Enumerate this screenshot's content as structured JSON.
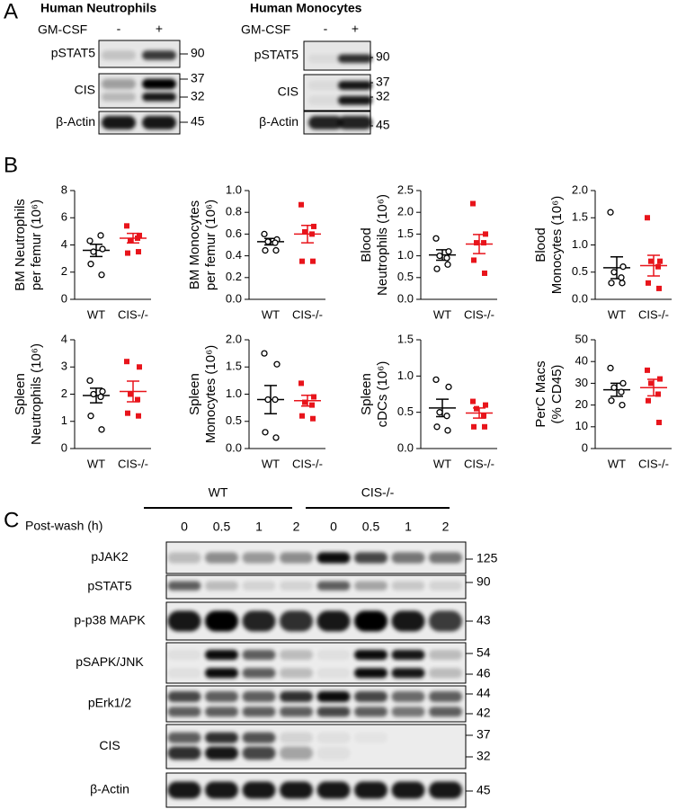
{
  "panels": [
    "A",
    "B",
    "C"
  ],
  "blot_a": [
    {
      "title": "Human Neutrophils",
      "treatment": "GM-CSF",
      "lanes": [
        "-",
        "+"
      ],
      "rows": [
        {
          "label": "pSTAT5",
          "mw": [
            "90"
          ]
        },
        {
          "label": "CIS",
          "mw": [
            "37",
            "32"
          ]
        },
        {
          "label": "β-Actin",
          "mw": [
            "45"
          ]
        }
      ]
    },
    {
      "title": "Human Monocytes",
      "treatment": "GM-CSF",
      "lanes": [
        "-",
        "+"
      ],
      "rows": [
        {
          "label": "pSTAT5",
          "mw": [
            "90"
          ]
        },
        {
          "label": "CIS",
          "mw": [
            "37",
            "32"
          ]
        },
        {
          "label": "β-Actin",
          "mw": [
            "45"
          ]
        }
      ]
    }
  ],
  "chart_data": [
    {
      "type": "dotplot",
      "ylabel": [
        "BM Neutrophils",
        "per femur (10⁶)"
      ],
      "ylim": [
        0,
        8
      ],
      "yticks": [
        0,
        2,
        4,
        6,
        8
      ],
      "series": [
        {
          "name": "WT",
          "color": "#000000",
          "values": [
            4.3,
            3.7,
            3.5,
            4.7,
            2.6,
            1.8
          ],
          "mean": 3.6,
          "sem": 0.45
        },
        {
          "name": "CIS-/-",
          "color": "#e8141b",
          "values": [
            5.4,
            4.7,
            4.3,
            4.5,
            3.4,
            3.5
          ],
          "mean": 4.5,
          "sem": 0.35
        }
      ]
    },
    {
      "type": "dotplot",
      "ylabel": [
        "BM Monocytes",
        "per femur (10⁶)"
      ],
      "ylim": [
        0,
        1.0
      ],
      "yticks": [
        {
          "value": 0,
          "label": "0.0"
        },
        {
          "value": 0.2,
          "label": "0.2"
        },
        {
          "value": 0.4,
          "label": "0.4"
        },
        {
          "value": 0.6,
          "label": "0.6"
        },
        {
          "value": 0.8,
          "label": "0.8"
        },
        {
          "value": 1.0,
          "label": "1.0"
        }
      ],
      "series": [
        {
          "name": "WT",
          "color": "#000000",
          "values": [
            0.6,
            0.55,
            0.53,
            0.52,
            0.45,
            0.45
          ],
          "mean": 0.53,
          "sem": 0.03
        },
        {
          "name": "CIS-/-",
          "color": "#e8141b",
          "values": [
            0.87,
            0.67,
            0.62,
            0.6,
            0.35,
            0.35
          ],
          "mean": 0.6,
          "sem": 0.08
        }
      ]
    },
    {
      "type": "dotplot",
      "ylabel": [
        "Blood",
        "Neutrophils (10⁶)"
      ],
      "ylim": [
        0,
        2.5
      ],
      "yticks": [
        {
          "value": 0,
          "label": "0.0"
        },
        0.5,
        {
          "value": 1,
          "label": "1.0"
        },
        1.5,
        {
          "value": 2,
          "label": "2.0"
        },
        2.5
      ],
      "series": [
        {
          "name": "WT",
          "color": "#000000",
          "values": [
            1.4,
            1.1,
            1.0,
            0.95,
            0.7,
            0.8
          ],
          "mean": 1.02,
          "sem": 0.12
        },
        {
          "name": "CIS-/-",
          "color": "#e8141b",
          "values": [
            2.2,
            1.5,
            1.3,
            1.3,
            0.9,
            0.6
          ],
          "mean": 1.27,
          "sem": 0.22
        }
      ]
    },
    {
      "type": "dotplot",
      "ylabel": [
        "Blood",
        "Monocytes (10⁶)"
      ],
      "ylim": [
        0,
        2.0
      ],
      "yticks": [
        {
          "value": 0,
          "label": "0.0"
        },
        0.5,
        {
          "value": 1,
          "label": "1.0"
        },
        1.5,
        {
          "value": 2,
          "label": "2.0"
        }
      ],
      "series": [
        {
          "name": "WT",
          "color": "#000000",
          "values": [
            1.6,
            0.6,
            0.5,
            0.4,
            0.3,
            0.3
          ],
          "mean": 0.58,
          "sem": 0.2
        },
        {
          "name": "CIS-/-",
          "color": "#e8141b",
          "values": [
            1.5,
            0.7,
            0.7,
            0.6,
            0.3,
            0.2
          ],
          "mean": 0.62,
          "sem": 0.19
        }
      ]
    },
    {
      "type": "dotplot",
      "ylabel": [
        "Spleen",
        "Neutrophils (10⁶)"
      ],
      "ylim": [
        0,
        4
      ],
      "yticks": [
        0,
        1,
        2,
        3,
        4
      ],
      "series": [
        {
          "name": "WT",
          "color": "#000000",
          "values": [
            2.5,
            2.1,
            2.0,
            1.9,
            1.2,
            0.7
          ],
          "mean": 1.95,
          "sem": 0.27
        },
        {
          "name": "CIS-/-",
          "color": "#e8141b",
          "values": [
            3.2,
            3.0,
            2.0,
            1.8,
            1.3,
            1.2
          ],
          "mean": 2.1,
          "sem": 0.38
        }
      ]
    },
    {
      "type": "dotplot",
      "ylabel": [
        "Spleen",
        "Monocytes (10⁶)"
      ],
      "ylim": [
        0,
        2.0
      ],
      "yticks": [
        {
          "value": 0,
          "label": "0.0"
        },
        0.5,
        {
          "value": 1,
          "label": "1.0"
        },
        1.5,
        {
          "value": 2,
          "label": "2.0"
        }
      ],
      "series": [
        {
          "name": "WT",
          "color": "#000000",
          "values": [
            1.75,
            1.55,
            0.9,
            0.9,
            0.3,
            0.2
          ],
          "mean": 0.9,
          "sem": 0.26
        },
        {
          "name": "CIS-/-",
          "color": "#e8141b",
          "values": [
            1.2,
            0.95,
            0.85,
            0.8,
            0.6,
            0.55
          ],
          "mean": 0.88,
          "sem": 0.1
        }
      ]
    },
    {
      "type": "dotplot",
      "ylabel": [
        "Spleen",
        "cDCs (10⁶)"
      ],
      "ylim": [
        0,
        1.5
      ],
      "yticks": [
        {
          "value": 0,
          "label": "0.0"
        },
        0.5,
        {
          "value": 1,
          "label": "1.0"
        },
        1.5
      ],
      "series": [
        {
          "name": "WT",
          "color": "#000000",
          "values": [
            0.95,
            0.85,
            0.5,
            0.45,
            0.3,
            0.25
          ],
          "mean": 0.56,
          "sem": 0.12
        },
        {
          "name": "CIS-/-",
          "color": "#e8141b",
          "values": [
            0.65,
            0.6,
            0.55,
            0.45,
            0.3,
            0.3
          ],
          "mean": 0.49,
          "sem": 0.07
        }
      ]
    },
    {
      "type": "dotplot",
      "ylabel": [
        "PerC Macs",
        "(% CD45)"
      ],
      "ylim": [
        0,
        50
      ],
      "yticks": [
        0,
        10,
        20,
        30,
        40,
        50
      ],
      "series": [
        {
          "name": "WT",
          "color": "#000000",
          "values": [
            37,
            30,
            28,
            26,
            22,
            20
          ],
          "mean": 27,
          "sem": 3
        },
        {
          "name": "CIS-/-",
          "color": "#e8141b",
          "values": [
            36,
            32,
            30,
            25,
            22,
            12
          ],
          "mean": 28,
          "sem": 3.8
        }
      ]
    }
  ],
  "blot_c": {
    "groups": [
      "WT",
      "CIS-/-"
    ],
    "lane_header": "Post-wash (h)",
    "timepoints": [
      "0",
      "0.5",
      "1",
      "2"
    ],
    "rows": [
      {
        "label": "pJAK2",
        "mw": [
          "125"
        ]
      },
      {
        "label": "pSTAT5",
        "mw": [
          "90"
        ]
      },
      {
        "label": "p-p38 MAPK",
        "mw": [
          "43"
        ]
      },
      {
        "label": "pSAPK/JNK",
        "mw": [
          "54",
          "46"
        ]
      },
      {
        "label": "pErk1/2",
        "mw": [
          "44",
          "42"
        ]
      },
      {
        "label": "CIS",
        "mw": [
          "37",
          "32"
        ]
      },
      {
        "label": "β-Actin",
        "mw": [
          "45"
        ]
      }
    ]
  }
}
